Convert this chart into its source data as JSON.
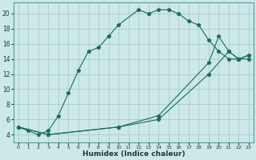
{
  "xlabel": "Humidex (Indice chaleur)",
  "bg_color": "#cce8e8",
  "grid_color": "#aacccc",
  "line_color": "#1a6b5a",
  "xlim": [
    -0.5,
    23.5
  ],
  "ylim": [
    3,
    21.5
  ],
  "yticks": [
    4,
    6,
    8,
    10,
    12,
    14,
    16,
    18,
    20
  ],
  "line1_x": [
    0,
    1,
    2,
    3,
    4,
    5,
    6,
    7,
    8,
    9,
    10,
    12,
    13,
    14,
    15,
    16,
    17,
    18,
    19,
    20,
    21,
    22,
    23
  ],
  "line1_y": [
    5,
    4.5,
    4,
    4.5,
    6.5,
    9.5,
    12.5,
    15,
    15.5,
    17,
    18.5,
    20.5,
    20,
    20.5,
    20.5,
    20,
    19,
    18.5,
    16.5,
    15,
    14,
    14,
    14.5
  ],
  "line2_x": [
    0,
    3,
    10,
    14,
    19,
    20,
    21,
    22,
    23
  ],
  "line2_y": [
    5,
    4,
    5,
    6.5,
    13.5,
    17,
    15,
    14,
    14.5
  ],
  "line3_x": [
    0,
    3,
    10,
    14,
    19,
    21,
    22,
    23
  ],
  "line3_y": [
    5,
    4,
    5,
    6,
    12,
    15,
    14,
    14
  ]
}
